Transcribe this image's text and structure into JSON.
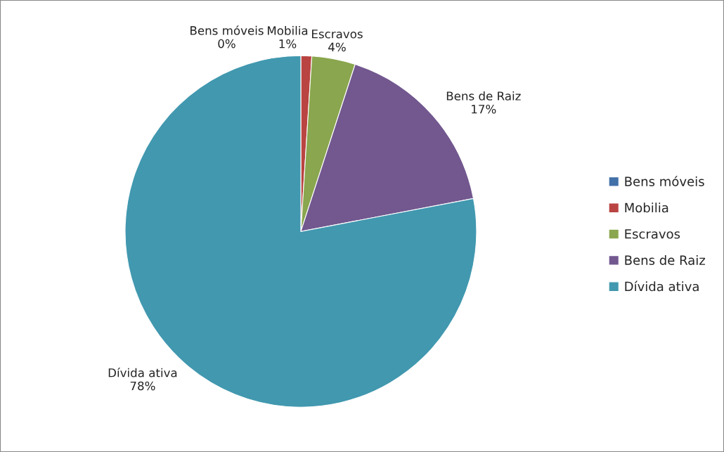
{
  "chart_data": {
    "type": "pie",
    "categories": [
      "Bens móveis",
      "Mobilia",
      "Escravos",
      "Bens de Raiz",
      "Dívida ativa"
    ],
    "values": [
      0,
      1,
      4,
      17,
      78
    ],
    "value_labels": [
      "0%",
      "1%",
      "4%",
      "17%",
      "78%"
    ],
    "colors": [
      "#4270a8",
      "#b94441",
      "#8aa64e",
      "#72588f",
      "#4198af"
    ],
    "legend": "right"
  }
}
